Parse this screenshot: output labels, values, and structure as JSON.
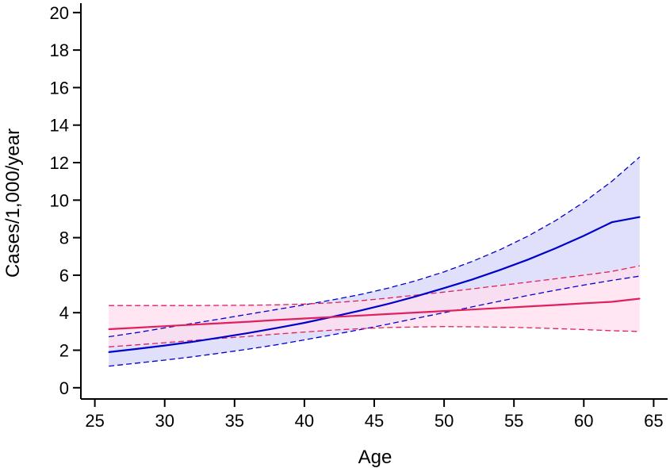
{
  "chart_data": {
    "type": "line",
    "title": "",
    "xlabel": "Age",
    "ylabel": "Cases/1,000/year",
    "xlim": [
      24,
      66
    ],
    "ylim": [
      -0.6,
      20.5
    ],
    "x_ticks": [
      25,
      30,
      35,
      40,
      45,
      50,
      55,
      60,
      65
    ],
    "y_ticks": [
      0,
      2,
      4,
      6,
      8,
      10,
      12,
      14,
      16,
      18,
      20
    ],
    "grid": false,
    "legend": "none",
    "x": [
      26,
      28,
      30,
      32,
      34,
      36,
      38,
      40,
      42,
      44,
      46,
      48,
      50,
      52,
      54,
      56,
      58,
      60,
      62,
      64
    ],
    "series": [
      {
        "color": "#0000cc",
        "band_fill": "#e0e0fb",
        "values": [
          1.9,
          2.07,
          2.25,
          2.45,
          2.68,
          2.92,
          3.18,
          3.46,
          3.78,
          4.11,
          4.47,
          4.87,
          5.31,
          5.77,
          6.28,
          6.83,
          7.44,
          8.1,
          8.82,
          9.1
        ],
        "lower": [
          1.15,
          1.31,
          1.47,
          1.65,
          1.85,
          2.06,
          2.29,
          2.55,
          2.82,
          3.1,
          3.39,
          3.7,
          4.0,
          4.31,
          4.62,
          4.92,
          5.2,
          5.47,
          5.72,
          5.95
        ],
        "upper": [
          2.72,
          2.94,
          3.19,
          3.43,
          3.67,
          3.92,
          4.17,
          4.42,
          4.68,
          4.97,
          5.31,
          5.71,
          6.18,
          6.73,
          7.36,
          8.08,
          8.92,
          9.89,
          11.0,
          12.3
        ]
      },
      {
        "color": "#e0205e",
        "band_fill": "#ffdeed",
        "values": [
          3.12,
          3.2,
          3.28,
          3.36,
          3.44,
          3.52,
          3.61,
          3.69,
          3.77,
          3.85,
          3.93,
          4.01,
          4.09,
          4.17,
          4.25,
          4.33,
          4.41,
          4.5,
          4.58,
          4.75
        ],
        "lower": [
          2.18,
          2.29,
          2.4,
          2.52,
          2.63,
          2.74,
          2.86,
          2.97,
          3.07,
          3.15,
          3.21,
          3.24,
          3.26,
          3.25,
          3.23,
          3.2,
          3.15,
          3.1,
          3.04,
          3.0
        ],
        "upper": [
          4.38,
          4.38,
          4.38,
          4.38,
          4.39,
          4.4,
          4.42,
          4.46,
          4.53,
          4.64,
          4.78,
          4.94,
          5.1,
          5.27,
          5.45,
          5.63,
          5.81,
          6.0,
          6.2,
          6.5
        ]
      }
    ]
  }
}
